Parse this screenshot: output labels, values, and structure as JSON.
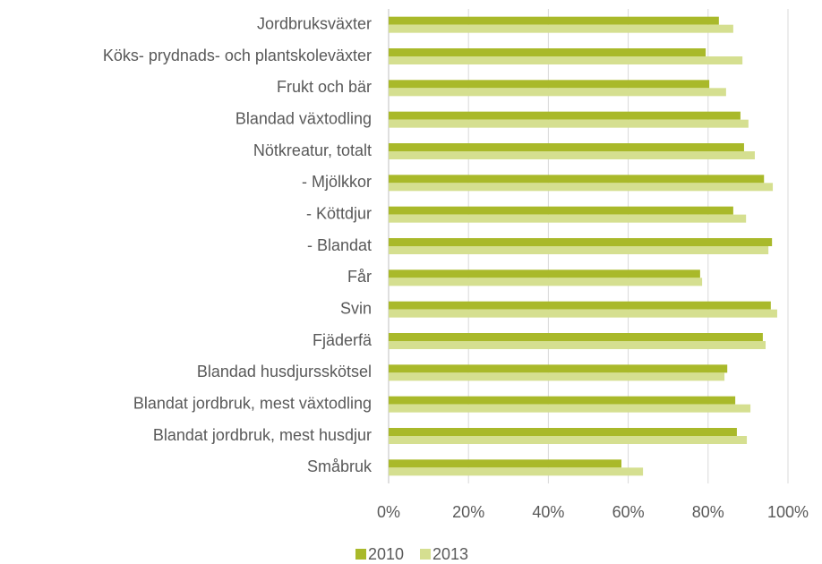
{
  "chart_data": {
    "type": "bar",
    "orientation": "horizontal",
    "categories": [
      "Jordbruksväxter",
      "Köks- prydnads- och plantskoleväxter",
      "Frukt och bär",
      "Blandad växtodling",
      "Nötkreatur, totalt",
      "- Mjölkkor",
      "- Köttdjur",
      "- Blandat",
      "Får",
      "Svin",
      "Fjäderfä",
      "Blandad husdjursskötsel",
      "Blandat jordbruk, mest växtodling",
      "Blandat jordbruk, mest husdjur",
      "Småbruk"
    ],
    "series": [
      {
        "name": "2010",
        "color": "#a9b92a",
        "values": [
          82.7,
          79.4,
          80.3,
          88.1,
          89.0,
          94.0,
          86.3,
          96.0,
          78.0,
          95.7,
          93.7,
          84.8,
          86.8,
          87.2,
          58.3
        ]
      },
      {
        "name": "2013",
        "color": "#d5df90",
        "values": [
          86.3,
          88.6,
          84.5,
          90.1,
          91.7,
          96.2,
          89.5,
          95.1,
          78.5,
          97.3,
          94.4,
          84.1,
          90.6,
          89.7,
          63.7
        ]
      }
    ],
    "xlim": [
      0,
      100
    ],
    "xticks": [
      {
        "value": 0,
        "label": "0%"
      },
      {
        "value": 20,
        "label": "20%"
      },
      {
        "value": 40,
        "label": "40%"
      },
      {
        "value": 60,
        "label": "60%"
      },
      {
        "value": 80,
        "label": "80%"
      },
      {
        "value": 100,
        "label": "100%"
      }
    ],
    "grid": true,
    "legend": "bottom"
  }
}
